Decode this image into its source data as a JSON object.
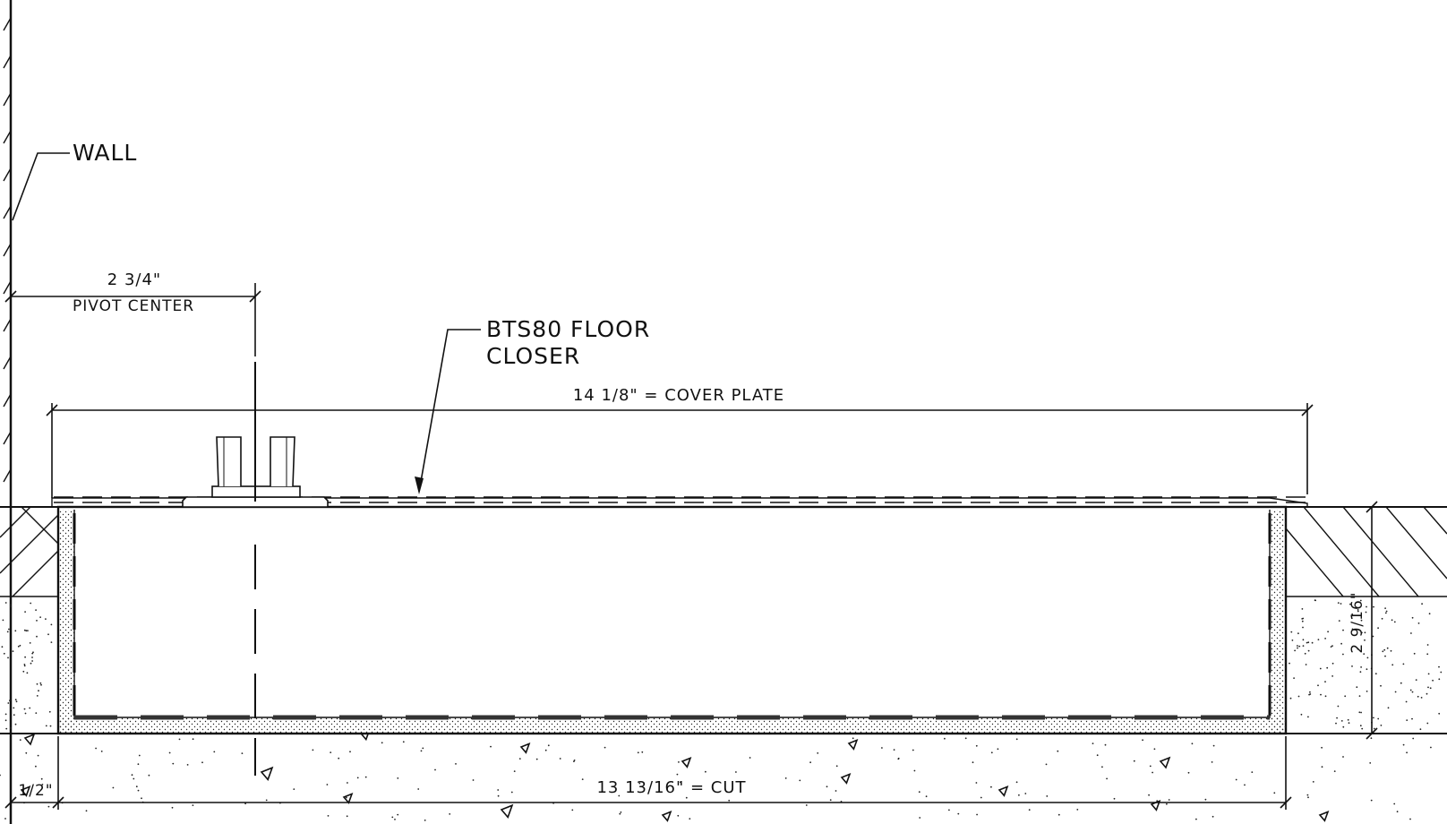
{
  "labels": {
    "wall": "WALL",
    "closer_line1": "BTS80 FLOOR",
    "closer_line2": "CLOSER"
  },
  "dimensions": {
    "pivot_value": "2 3/4\"",
    "pivot_caption": "PIVOT CENTER",
    "cover_plate": "14 1/8\" = COVER PLATE",
    "cut": "13 13/16\" = CUT",
    "depth": "2 9/16\"",
    "offset": "1/2\""
  },
  "colors": {
    "line": "#111111",
    "fill": "#ffffff"
  }
}
